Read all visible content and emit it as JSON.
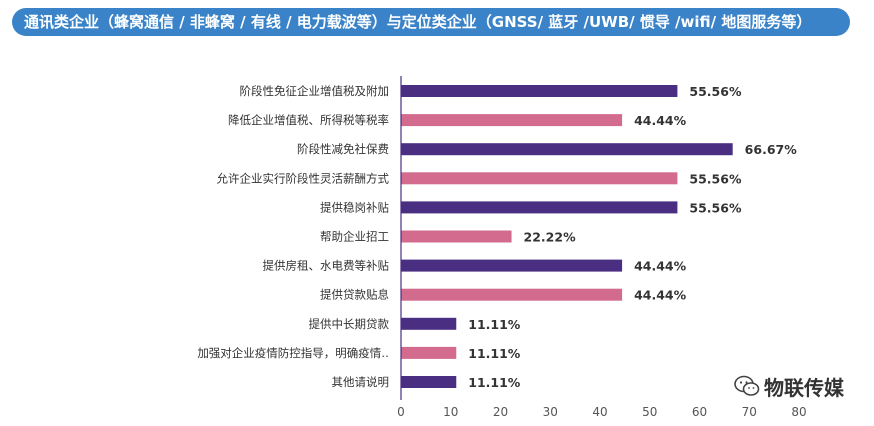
{
  "header": {
    "title": "通讯类企业（蜂窝通信 / 非蜂窝 / 有线 / 电力载波等）与定位类企业（GNSS/ 蓝牙 /UWB/ 惯导 /wifi/ 地图服务等）"
  },
  "watermark": {
    "text": "物联传媒",
    "icon": "wechat-icon"
  },
  "colors": {
    "series_a": "#4a2e82",
    "series_b": "#d26b8e",
    "title_bg": "#3a83c8",
    "axis": "#4a2e82"
  },
  "chart_data": {
    "type": "bar",
    "orientation": "horizontal",
    "categories": [
      "阶段性免征企业增值税及附加",
      "降低企业增值税、所得税等税率",
      "阶段性减免社保费",
      "允许企业实行阶段性灵活薪酬方式",
      "提供稳岗补贴",
      "帮助企业招工",
      "提供房租、水电费等补贴",
      "提供贷款贴息",
      "提供中长期贷款",
      "加强对企业疫情防控指导，明确疫情‥",
      "其他请说明"
    ],
    "values": [
      55.56,
      44.44,
      66.67,
      55.56,
      55.56,
      22.22,
      44.44,
      44.44,
      11.11,
      11.11,
      11.11
    ],
    "value_labels": [
      "55.56%",
      "44.44%",
      "66.67%",
      "55.56%",
      "55.56%",
      "22.22%",
      "44.44%",
      "44.44%",
      "11.11%",
      "11.11%",
      "11.11%"
    ],
    "bar_colors": [
      "#4a2e82",
      "#d26b8e",
      "#4a2e82",
      "#d26b8e",
      "#4a2e82",
      "#d26b8e",
      "#4a2e82",
      "#d26b8e",
      "#4a2e82",
      "#d26b8e",
      "#4a2e82"
    ],
    "x_ticks": [
      "0",
      "10",
      "20",
      "30",
      "40",
      "50",
      "60",
      "70",
      "80"
    ],
    "xlim": [
      0,
      80
    ],
    "title": "",
    "xlabel": "",
    "ylabel": "",
    "grid": false,
    "legend": "none"
  }
}
